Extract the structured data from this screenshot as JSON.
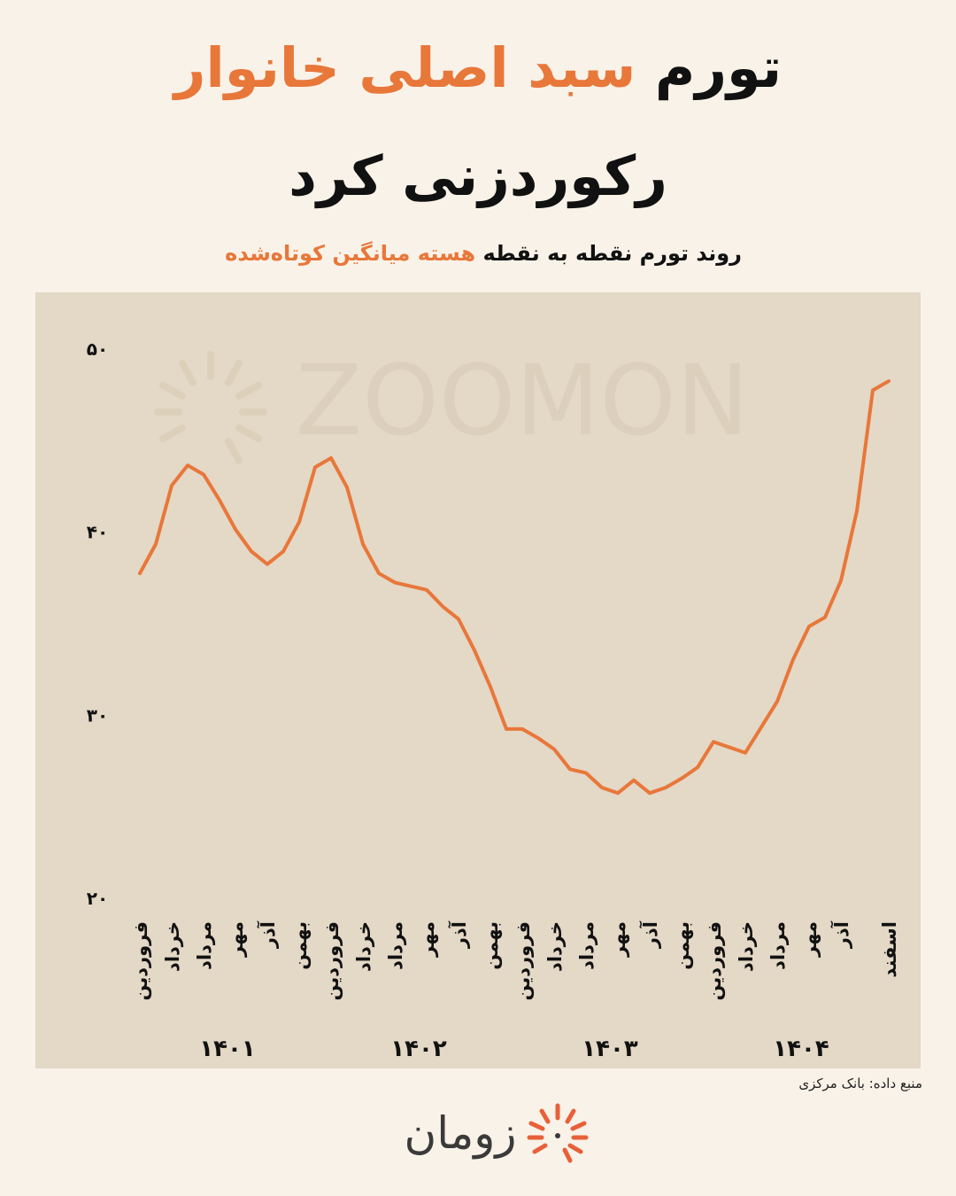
{
  "chart_data": {
    "type": "line",
    "title": [
      [
        {
          "text": "تورم",
          "color": "#111111"
        },
        {
          "text": "سبد اصلی خانوار",
          "color": "#e8773a"
        }
      ],
      [
        {
          "text": "رکوردزنی کرد",
          "color": "#111111"
        }
      ]
    ],
    "subtitle": [
      {
        "text": "روند تورم نقطه به نقطه",
        "color": "#111111"
      },
      {
        "text": "هسته میانگین کوتاه‌شده",
        "color": "#e8773a"
      }
    ],
    "categories": [
      "فروردین",
      null,
      "خرداد",
      null,
      "مرداد",
      null,
      "مهر",
      null,
      "آذر",
      null,
      "بهمن",
      null,
      "فروردین",
      null,
      "خرداد",
      null,
      "مرداد",
      null,
      "مهر",
      null,
      "آذر",
      null,
      "بهمن",
      null,
      "فروردین",
      null,
      "خرداد",
      null,
      "مرداد",
      null,
      "مهر",
      null,
      "آذر",
      null,
      "بهمن",
      null,
      "فروردین",
      null,
      "خرداد",
      null,
      "مرداد",
      null,
      "مهر",
      null,
      "آذر",
      null,
      null,
      "اسفند"
    ],
    "years": [
      "۱۴۰۱",
      "۱۴۰۲",
      "۱۴۰۳",
      "۱۴۰۴"
    ],
    "values": [
      37.7,
      39.3,
      42.5,
      43.6,
      43.1,
      41.7,
      40.1,
      38.9,
      38.2,
      38.9,
      40.5,
      43.5,
      44.0,
      42.4,
      39.3,
      37.7,
      37.2,
      37.0,
      36.8,
      35.9,
      35.2,
      33.5,
      31.5,
      29.2,
      29.2,
      28.7,
      28.1,
      27.0,
      26.8,
      26.0,
      25.7,
      26.4,
      25.7,
      26.0,
      26.5,
      27.1,
      28.5,
      28.2,
      27.9,
      29.3,
      30.7,
      33.0,
      34.8,
      35.3,
      37.3,
      41.1,
      47.7,
      48.2
    ],
    "color": "#e8773a",
    "ylim": [
      20,
      50
    ],
    "yticks": [
      {
        "value": 20,
        "label": "۲۰"
      },
      {
        "value": 30,
        "label": "۳۰"
      },
      {
        "value": 40,
        "label": "۴۰"
      },
      {
        "value": 50,
        "label": "۵۰"
      }
    ],
    "watermark": "ZOOMON",
    "source": "منبع داده: بانک مرکزی",
    "brand": "زومان"
  }
}
